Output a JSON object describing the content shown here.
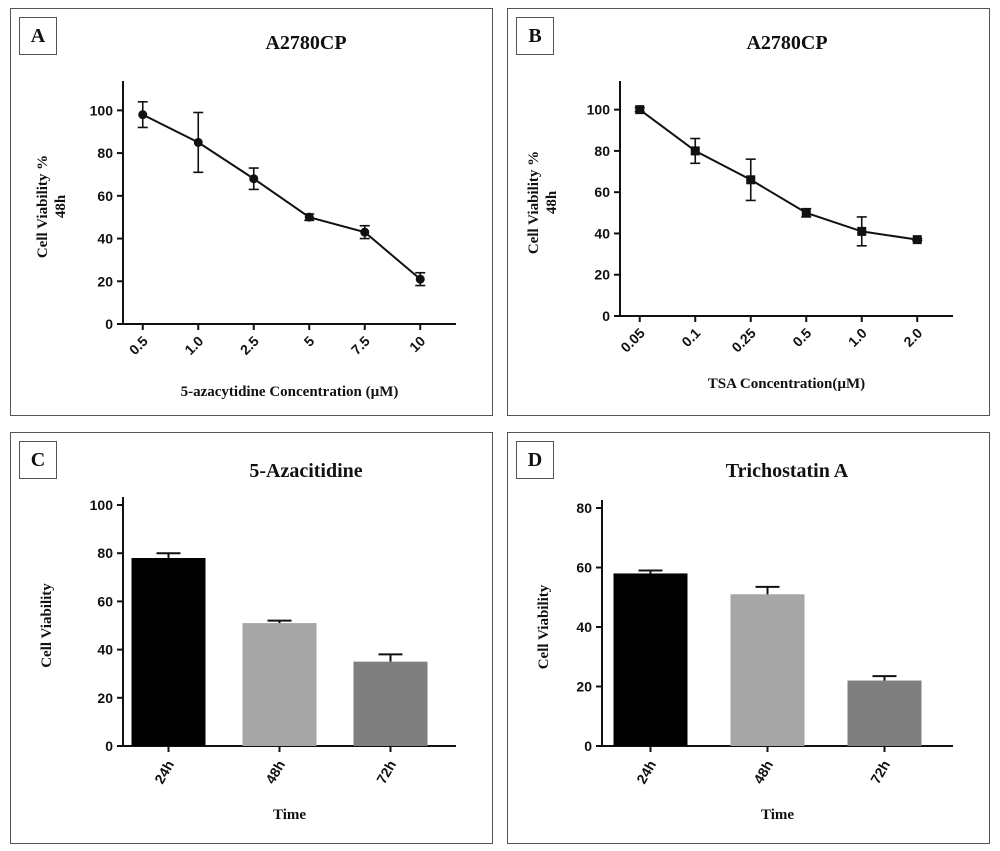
{
  "panels": {
    "A": {
      "letter": "A"
    },
    "B": {
      "letter": "B"
    },
    "C": {
      "letter": "C"
    },
    "D": {
      "letter": "D"
    }
  },
  "chart_data": [
    {
      "id": "A",
      "type": "line",
      "title": "A2780CP",
      "xlabel": "5-azacytidine Concentration (µM)",
      "ylabel": [
        "Cell Viability %",
        "48h"
      ],
      "categories": [
        "0.5",
        "1.0",
        "2.5",
        "5",
        "7.5",
        "10"
      ],
      "values": [
        98,
        85,
        68,
        50,
        43,
        21
      ],
      "errors": [
        6,
        14,
        5,
        1.5,
        3,
        3
      ],
      "ylim": [
        0,
        110
      ],
      "yticks": [
        0,
        20,
        40,
        60,
        80,
        100
      ],
      "marker": "circle"
    },
    {
      "id": "B",
      "type": "line",
      "title": "A2780CP",
      "xlabel": "TSA Concentration(µM)",
      "ylabel": [
        "Cell Viability %",
        "48h"
      ],
      "categories": [
        "0.05",
        "0.1",
        "0.25",
        "0.5",
        "1.0",
        "2.0"
      ],
      "values": [
        100,
        80,
        66,
        50,
        41,
        37
      ],
      "errors": [
        1,
        6,
        10,
        2,
        7,
        0.5
      ],
      "ylim": [
        0,
        110
      ],
      "yticks": [
        0,
        20,
        40,
        60,
        80,
        100
      ],
      "marker": "square"
    },
    {
      "id": "C",
      "type": "bar",
      "title": "5-Azacitidine",
      "xlabel": "Time",
      "ylabel": [
        "Cell Viability"
      ],
      "categories": [
        "24h",
        "48h",
        "72h"
      ],
      "values": [
        78,
        51,
        35
      ],
      "errors": [
        2,
        1,
        3
      ],
      "colors": [
        "#000000",
        "#a6a6a6",
        "#7f7f7f"
      ],
      "ylim": [
        0,
        100
      ],
      "yticks": [
        0,
        20,
        40,
        60,
        80,
        100
      ]
    },
    {
      "id": "D",
      "type": "bar",
      "title": "Trichostatin A",
      "xlabel": "Time",
      "ylabel": [
        "Cell Viability"
      ],
      "categories": [
        "24h",
        "48h",
        "72h"
      ],
      "values": [
        58,
        51,
        22
      ],
      "errors": [
        1,
        2.5,
        1.5
      ],
      "colors": [
        "#000000",
        "#a6a6a6",
        "#7f7f7f"
      ],
      "ylim": [
        0,
        80
      ],
      "yticks": [
        0,
        20,
        40,
        60,
        80
      ]
    }
  ]
}
